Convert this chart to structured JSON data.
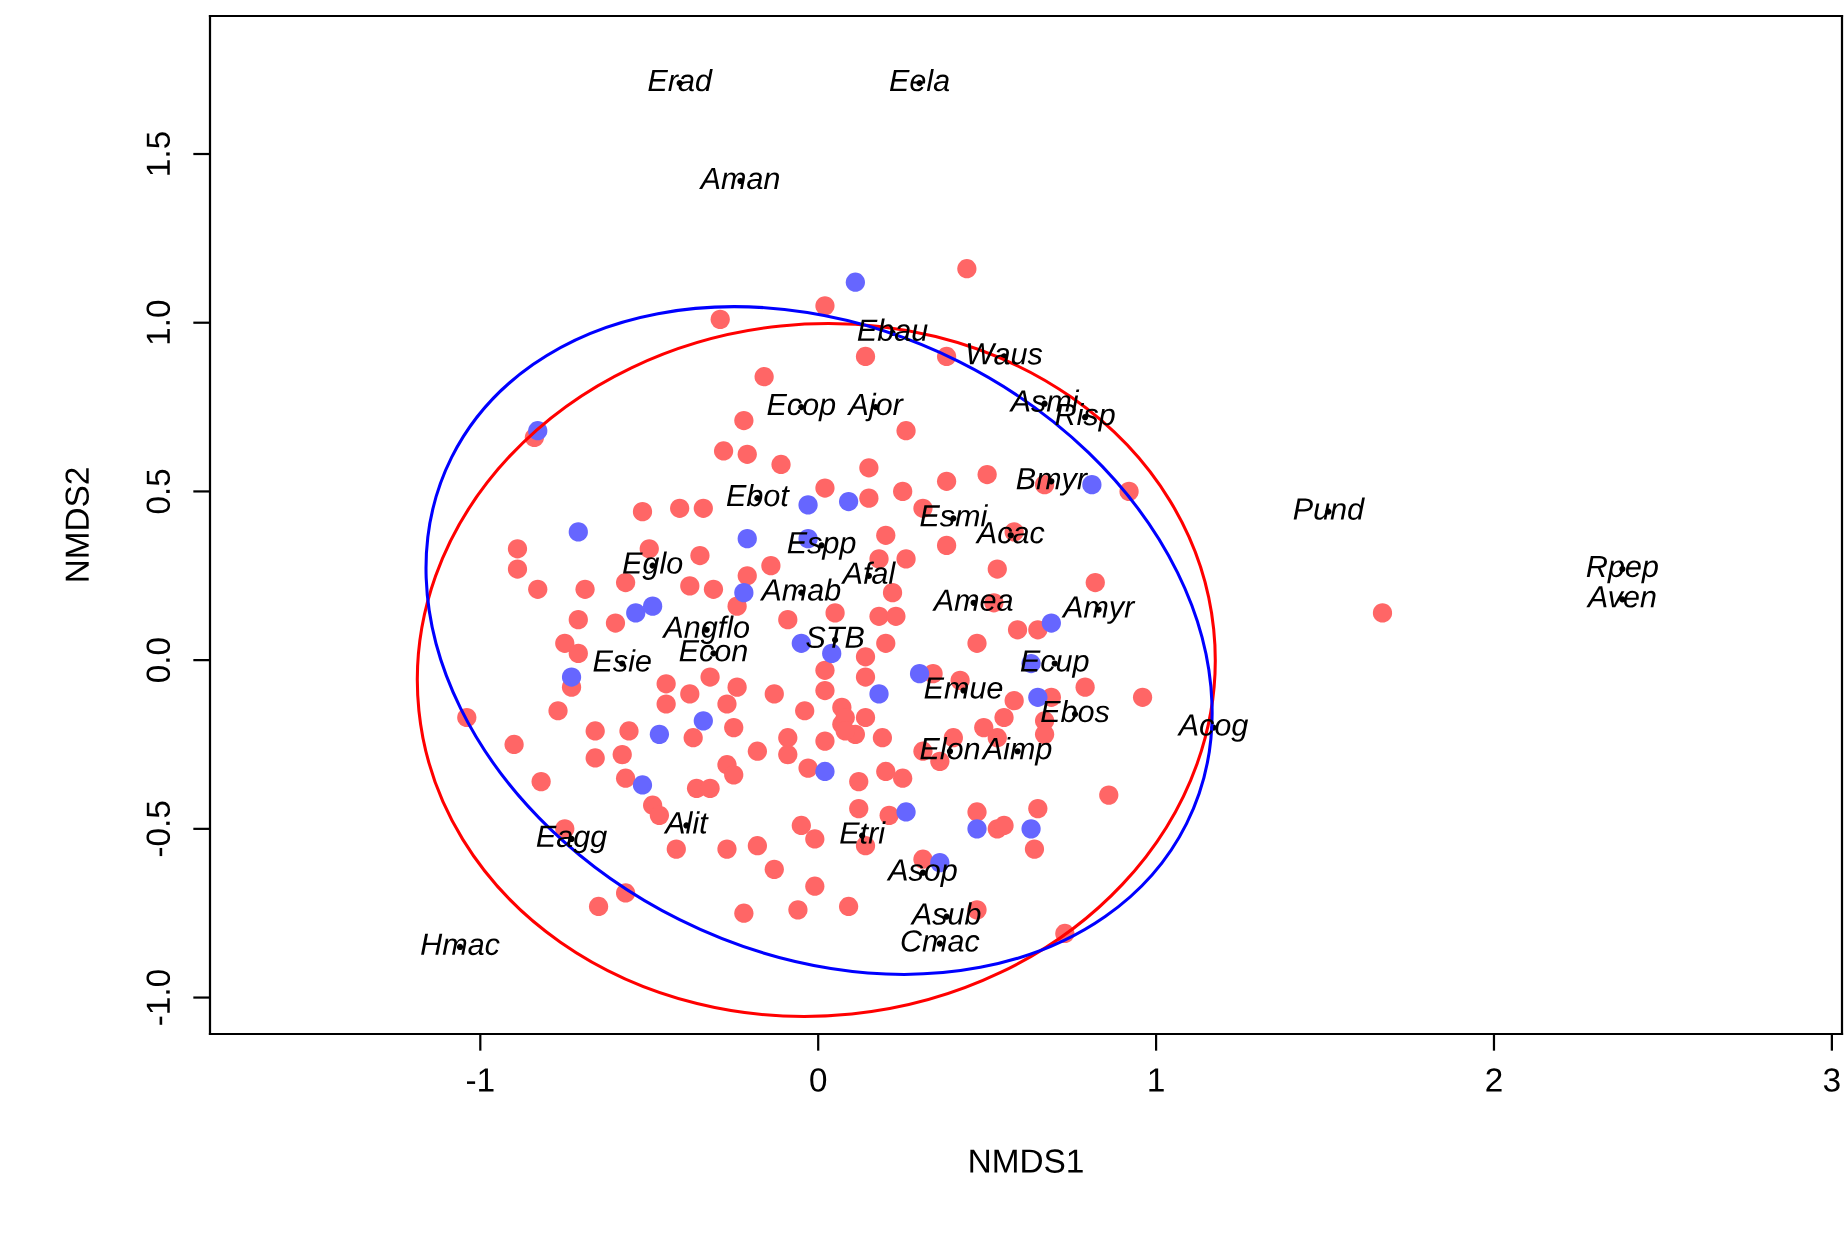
{
  "chart_data": {
    "type": "scatter",
    "xlabel": "NMDS1",
    "ylabel": "NMDS2",
    "xlim": [
      -1.8,
      3.03
    ],
    "ylim": [
      -1.108,
      1.909
    ],
    "xticks": [
      -1,
      0,
      1,
      2,
      3
    ],
    "yticks": [
      {
        "value": -1.0,
        "label": "-1.0"
      },
      {
        "value": -0.5,
        "label": "-0.5"
      },
      {
        "value": 0.0,
        "label": "0.0"
      },
      {
        "value": 0.5,
        "label": "0.5"
      },
      {
        "value": 1.0,
        "label": "1.0"
      },
      {
        "value": 1.5,
        "label": "1.5"
      }
    ],
    "grid": false,
    "legend": false,
    "marker": "circle",
    "series": [
      {
        "type": "scatter",
        "color": "#ff6666",
        "x": [
          -0.29,
          0.02,
          0.14,
          -0.16,
          -0.22,
          -0.28,
          -0.21,
          -0.11,
          -0.84,
          0.15,
          0.02,
          0.15,
          -0.52,
          -0.41,
          -0.34,
          -0.89,
          -0.89,
          -0.83,
          -0.69,
          -0.57,
          -0.5,
          -0.35,
          -0.38,
          -0.31,
          -0.21,
          -0.14,
          -0.71,
          -0.6,
          -0.24,
          -0.09,
          0.05,
          0.44,
          0.38,
          0.26,
          0.25,
          0.31,
          0.38,
          0.5,
          0.92,
          0.67,
          0.2,
          0.38,
          0.58,
          0.18,
          0.26,
          0.53,
          0.22,
          0.82,
          0.18,
          0.23,
          0.52,
          0.59,
          0.65,
          -0.75,
          -0.71,
          -0.77,
          -0.73,
          -1.04,
          -0.9,
          -0.82,
          -0.66,
          -0.66,
          -0.56,
          -0.58,
          -0.57,
          -0.49,
          -0.47,
          -0.75,
          -0.65,
          -0.57,
          -0.45,
          -0.45,
          -0.38,
          -0.32,
          -0.24,
          -0.27,
          -0.25,
          -0.37,
          -0.18,
          -0.27,
          -0.25,
          -0.36,
          -0.32,
          -0.42,
          -0.27,
          -0.18,
          -0.13,
          -0.22,
          -0.06,
          -0.01,
          -0.05,
          -0.01,
          0.09,
          -0.13,
          -0.09,
          -0.09,
          -0.04,
          -0.03,
          0.02,
          0.07,
          0.07,
          0.02,
          0.12,
          0.12,
          0.14,
          0.11,
          0.47,
          0.2,
          0.14,
          0.14,
          0.02,
          0.34,
          0.42,
          0.58,
          0.69,
          0.79,
          0.96,
          0.08,
          0.14,
          0.08,
          0.19,
          0.4,
          0.49,
          0.55,
          0.53,
          0.67,
          0.67,
          0.36,
          0.31,
          0.2,
          0.25,
          0.86,
          0.21,
          0.47,
          0.65,
          0.53,
          0.55,
          0.64,
          0.31,
          0.47,
          0.73,
          1.67
        ],
        "values": [
          1.01,
          1.05,
          0.9,
          0.84,
          0.71,
          0.62,
          0.61,
          0.58,
          0.66,
          0.57,
          0.51,
          0.48,
          0.44,
          0.45,
          0.45,
          0.33,
          0.27,
          0.21,
          0.21,
          0.23,
          0.33,
          0.31,
          0.22,
          0.21,
          0.25,
          0.28,
          0.12,
          0.11,
          0.16,
          0.12,
          0.14,
          1.16,
          0.9,
          0.68,
          0.5,
          0.45,
          0.53,
          0.55,
          0.5,
          0.52,
          0.37,
          0.34,
          0.38,
          0.3,
          0.3,
          0.27,
          0.2,
          0.23,
          0.13,
          0.13,
          0.17,
          0.09,
          0.09,
          0.05,
          0.02,
          -0.15,
          -0.08,
          -0.17,
          -0.25,
          -0.36,
          -0.21,
          -0.29,
          -0.21,
          -0.28,
          -0.35,
          -0.43,
          -0.46,
          -0.5,
          -0.73,
          -0.69,
          -0.07,
          -0.13,
          -0.1,
          -0.05,
          -0.08,
          -0.13,
          -0.2,
          -0.23,
          -0.27,
          -0.31,
          -0.34,
          -0.38,
          -0.38,
          -0.56,
          -0.56,
          -0.55,
          -0.62,
          -0.75,
          -0.74,
          -0.67,
          -0.49,
          -0.53,
          -0.73,
          -0.1,
          -0.23,
          -0.28,
          -0.15,
          -0.32,
          -0.24,
          -0.19,
          -0.14,
          -0.03,
          -0.36,
          -0.44,
          -0.55,
          -0.22,
          0.05,
          0.05,
          0.01,
          -0.05,
          -0.09,
          -0.04,
          -0.06,
          -0.12,
          -0.11,
          -0.08,
          -0.11,
          -0.17,
          -0.17,
          -0.21,
          -0.23,
          -0.23,
          -0.2,
          -0.17,
          -0.23,
          -0.18,
          -0.22,
          -0.3,
          -0.27,
          -0.33,
          -0.35,
          -0.4,
          -0.46,
          -0.45,
          -0.44,
          -0.5,
          -0.49,
          -0.56,
          -0.59,
          -0.74,
          -0.81,
          0.14
        ]
      },
      {
        "type": "scatter",
        "color": "#6666ff",
        "x": [
          0.11,
          -0.83,
          -0.71,
          -0.03,
          0.09,
          -0.21,
          -0.03,
          -0.22,
          -0.54,
          -0.49,
          0.81,
          0.69,
          -0.73,
          -0.34,
          -0.47,
          -0.52,
          -0.05,
          0.04,
          0.02,
          0.18,
          0.3,
          0.63,
          0.65,
          0.26,
          0.47,
          0.63,
          0.36
        ],
        "values": [
          1.12,
          0.68,
          0.38,
          0.46,
          0.47,
          0.36,
          0.36,
          0.2,
          0.14,
          0.16,
          0.52,
          0.11,
          -0.05,
          -0.18,
          -0.22,
          -0.37,
          0.05,
          0.02,
          -0.33,
          -0.1,
          -0.04,
          -0.01,
          -0.11,
          -0.45,
          -0.5,
          -0.5,
          -0.6
        ]
      },
      {
        "color": "#000000",
        "x": [
          -0.41,
          0.3,
          -0.23,
          0.22,
          0.55,
          0.67,
          0.79,
          -0.05,
          0.17,
          0.69,
          1.51,
          2.38,
          2.38,
          -0.18,
          0.4,
          0.57,
          0.01,
          -0.49,
          0.15,
          -0.05,
          0.46,
          0.83,
          -0.33,
          0.05,
          0.7,
          -0.58,
          -0.31,
          0.43,
          0.76,
          1.17,
          0.39,
          0.59,
          -0.73,
          -0.39,
          0.13,
          0.31,
          0.38,
          0.36,
          -1.06
        ],
        "values": [
          1.71,
          1.71,
          1.42,
          0.97,
          0.9,
          0.76,
          0.72,
          0.75,
          0.75,
          0.53,
          0.44,
          0.27,
          0.18,
          0.48,
          0.42,
          0.37,
          0.34,
          0.28,
          0.25,
          0.2,
          0.17,
          0.15,
          0.09,
          0.06,
          -0.01,
          -0.01,
          0.02,
          -0.09,
          -0.16,
          -0.2,
          -0.27,
          -0.27,
          -0.53,
          -0.49,
          -0.52,
          -0.63,
          -0.76,
          -0.84,
          -0.85
        ],
        "value_labels": [
          "Erad",
          "Eela",
          "Aman",
          "Ebau",
          "Waus",
          "Asmi",
          "Risp",
          "Ecop",
          "Ajor",
          "Bmyr",
          "Pund",
          "Rpep",
          "Aven",
          "Ebot",
          "Esmi",
          "Acac",
          "Espp",
          "Eglo",
          "Afal",
          "Amab",
          "Amea",
          "Amyr",
          "Angflo",
          "STB",
          "Ecup",
          "Esie",
          "Econ",
          "Emue",
          "Ebos",
          "Acog",
          "Elon",
          "Aimp",
          "Eagg",
          "Alit",
          "Etri",
          "Asop",
          "Asub",
          "Cmac",
          "Hmac"
        ]
      }
    ]
  }
}
